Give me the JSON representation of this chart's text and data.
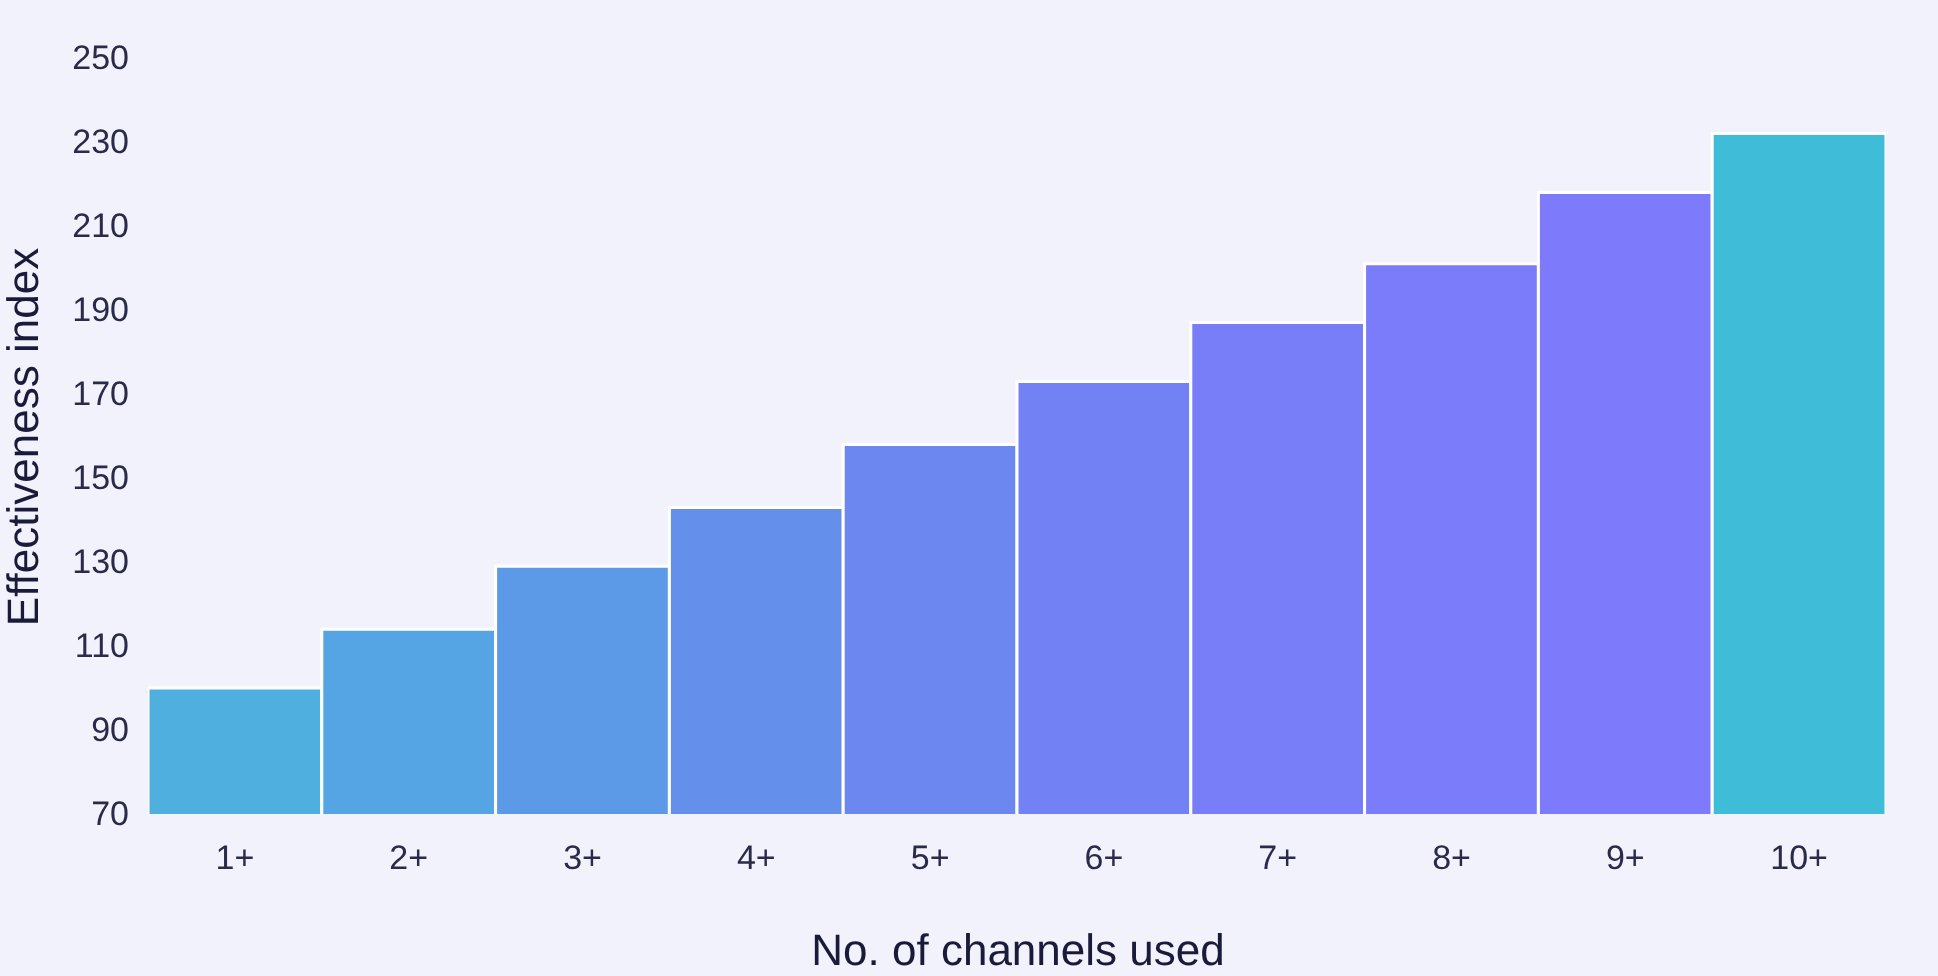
{
  "chart_data": {
    "type": "bar",
    "xlabel": "No. of channels used",
    "ylabel": "Effectiveness index",
    "categories": [
      "1+",
      "2+",
      "3+",
      "4+",
      "5+",
      "6+",
      "7+",
      "8+",
      "9+",
      "10+"
    ],
    "values": [
      100,
      114,
      129,
      143,
      158,
      173,
      187,
      201,
      218,
      232
    ],
    "colors": [
      "#4fb0e0",
      "#55a4e4",
      "#5c9ae8",
      "#6490ec",
      "#6c88f0",
      "#7282f4",
      "#777ef8",
      "#7b7cfa",
      "#7e7afc",
      "#3fbcd8"
    ],
    "ylim": [
      70,
      250
    ],
    "yticks": [
      70,
      90,
      110,
      130,
      150,
      170,
      190,
      210,
      230,
      250
    ],
    "grid": false
  }
}
